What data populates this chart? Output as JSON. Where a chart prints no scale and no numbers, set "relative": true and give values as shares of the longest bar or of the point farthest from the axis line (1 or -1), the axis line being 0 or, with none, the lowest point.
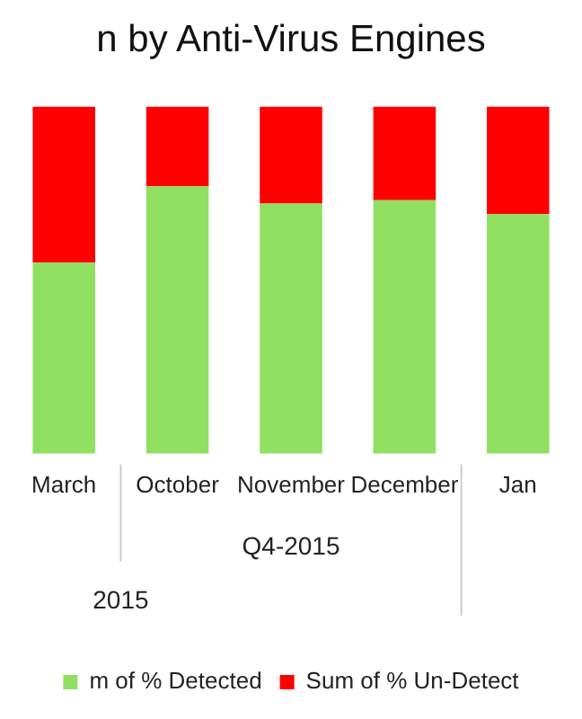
{
  "chart_data": {
    "type": "bar",
    "title": "n by Anti-Virus Engines",
    "categories": [
      "March",
      "October",
      "November",
      "December",
      "Jan"
    ],
    "stacked": true,
    "relative": true,
    "series": [
      {
        "name": "m of % Detected",
        "color": "#8fe060",
        "values": [
          0.55,
          0.77,
          0.72,
          0.73,
          0.69
        ]
      },
      {
        "name": "Sum of % Un-Detect",
        "color": "#ff0000",
        "values": [
          0.45,
          0.23,
          0.28,
          0.27,
          0.31
        ]
      }
    ],
    "annotations": [
      "Q4-2015",
      "2015"
    ],
    "legend": "bottom",
    "grid": false
  }
}
